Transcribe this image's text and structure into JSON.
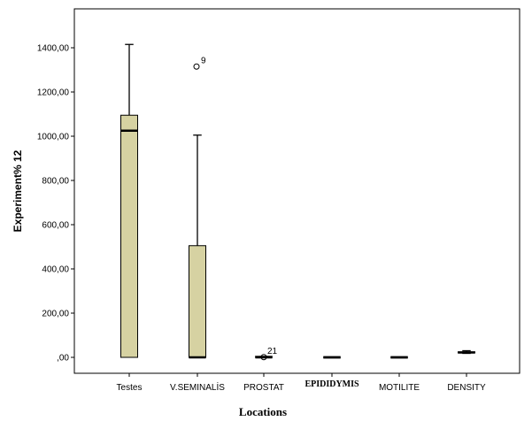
{
  "chart_data": {
    "type": "boxplot",
    "title": "",
    "xlabel": "Locations",
    "ylabel": "Experiment% 12",
    "ylim": [
      -80,
      1550
    ],
    "yticks": [
      0,
      200,
      400,
      600,
      800,
      1000,
      1200,
      1400
    ],
    "ytick_labels": [
      ",00",
      "200,00",
      "400,00",
      "600,00",
      "800,00",
      "1000,00",
      "1200,00",
      "1400,00"
    ],
    "grid": false,
    "box_color": "#d6d2a2",
    "categories": [
      {
        "name": "Testes",
        "min": 0,
        "q1": 0,
        "median": 1025,
        "q3": 1095,
        "max": 1415,
        "outliers": []
      },
      {
        "name": "V.SEMINALİS",
        "min": 0,
        "q1": 0,
        "median": 0,
        "q3": 505,
        "max": 1005,
        "outliers": [
          {
            "value": 1315,
            "label": "9"
          }
        ]
      },
      {
        "name": "PROSTAT",
        "min": 0,
        "q1": 0,
        "median": 0,
        "q3": 2,
        "max": 4,
        "outliers": [
          {
            "value": 1,
            "label": "21"
          }
        ]
      },
      {
        "name": "EPIDIDYMIS",
        "min": 0,
        "q1": 0,
        "median": 0,
        "q3": 0,
        "max": 0,
        "outliers": []
      },
      {
        "name": "MOTILITE",
        "min": 0,
        "q1": 0,
        "median": 0,
        "q3": 0,
        "max": 0,
        "outliers": []
      },
      {
        "name": "DENSITY",
        "min": 18,
        "q1": 20,
        "median": 22,
        "q3": 25,
        "max": 30,
        "outliers": []
      }
    ]
  }
}
